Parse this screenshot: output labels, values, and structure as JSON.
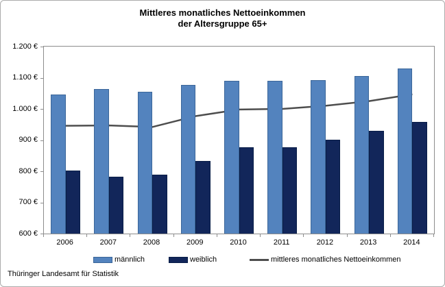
{
  "title": {
    "line1": "Mittleres monatliches Nettoeinkommen",
    "line2": "der Altersgruppe 65+"
  },
  "footer": "Thüringer Landesamt für Statistik",
  "colors": {
    "male_fill": "#5383BE",
    "male_border": "#3A6598",
    "female_fill": "#12265A",
    "female_border": "#081D47",
    "line": "#4D4D4D",
    "axis": "#8C8C8C"
  },
  "chart_data": {
    "type": "bar",
    "subtype": "grouped bars with overlaid line",
    "title": "Mittleres monatliches Nettoeinkommen der Altersgruppe 65+",
    "categories": [
      "2006",
      "2007",
      "2008",
      "2009",
      "2010",
      "2011",
      "2012",
      "2013",
      "2014"
    ],
    "series": [
      {
        "name": "männlich",
        "type": "bar",
        "values": [
          1047,
          1064,
          1055,
          1076,
          1090,
          1090,
          1092,
          1105,
          1129
        ]
      },
      {
        "name": "weiblich",
        "type": "bar",
        "values": [
          802,
          783,
          789,
          834,
          877,
          877,
          902,
          929,
          958
        ]
      },
      {
        "name": "mittleres monatliches Nettoeinkommen",
        "type": "line",
        "values": [
          946,
          947,
          942,
          977,
          998,
          1000,
          1010,
          1025,
          1047
        ]
      }
    ],
    "xlabel": "",
    "ylabel": "",
    "ylim": [
      600,
      1200
    ],
    "ytick_step": 100,
    "ytick_labels": [
      "600 €",
      "700 €",
      "800 €",
      "900 €",
      "1.000 €",
      "1.100 €",
      "1.200 €"
    ],
    "grid": false,
    "legend_position": "bottom",
    "unit": "€"
  }
}
